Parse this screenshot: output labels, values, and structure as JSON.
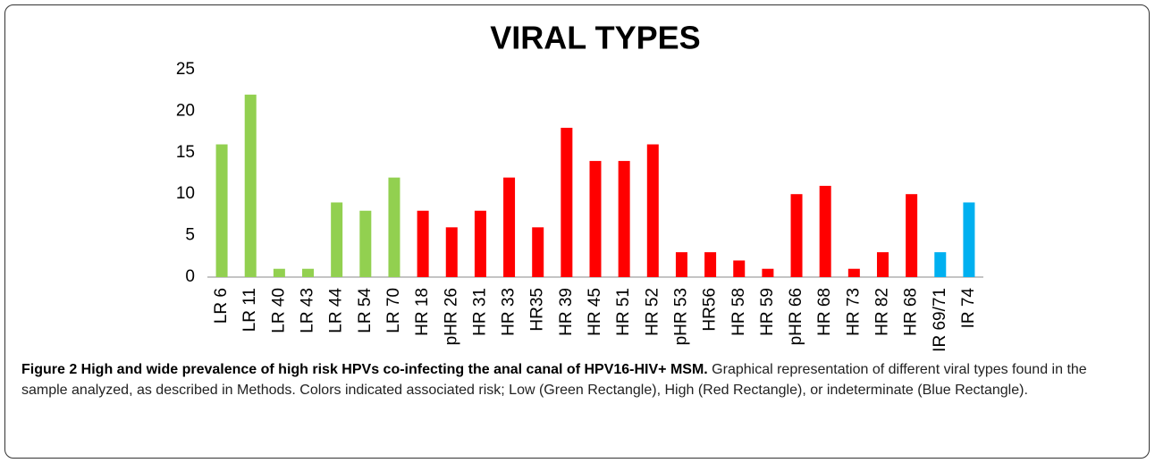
{
  "chart_data": {
    "type": "bar",
    "title": "VIRAL TYPES",
    "categories": [
      "LR 6",
      "LR 11",
      "LR 40",
      "LR 43",
      "LR 44",
      "LR 54",
      "LR 70",
      "HR 18",
      "pHR 26",
      "HR 31",
      "HR 33",
      "HR35",
      "HR 39",
      "HR 45",
      "HR 51",
      "HR 52",
      "pHR 53",
      "HR56",
      "HR 58",
      "HR 59",
      "pHR 66",
      "HR 68",
      "HR 73",
      "HR 82",
      "HR 68",
      "IR 69/71",
      "IR 74"
    ],
    "values": [
      16,
      22,
      1,
      1,
      9,
      8,
      12,
      8,
      6,
      8,
      12,
      6,
      18,
      14,
      14,
      16,
      3,
      3,
      2,
      1,
      10,
      11,
      1,
      3,
      10,
      3,
      9
    ],
    "colors": [
      "#92d050",
      "#92d050",
      "#92d050",
      "#92d050",
      "#92d050",
      "#92d050",
      "#92d050",
      "#ff0000",
      "#ff0000",
      "#ff0000",
      "#ff0000",
      "#ff0000",
      "#ff0000",
      "#ff0000",
      "#ff0000",
      "#ff0000",
      "#ff0000",
      "#ff0000",
      "#ff0000",
      "#ff0000",
      "#ff0000",
      "#ff0000",
      "#ff0000",
      "#ff0000",
      "#ff0000",
      "#00b0f0",
      "#00b0f0"
    ],
    "ylim": [
      0,
      25
    ],
    "yticks": [
      0,
      5,
      10,
      15,
      20,
      25
    ],
    "grid": false
  },
  "caption": {
    "label": "Figure 2 High and wide prevalence of high risk HPVs co-infecting the anal canal of HPV16-HIV+ MSM.",
    "text": "Graphical representation of different viral types found in the sample analyzed, as described in Methods. Colors indicated associated risk; Low (Green Rectangle), High (Red Rectangle), or indeterminate (Blue Rectangle)."
  }
}
